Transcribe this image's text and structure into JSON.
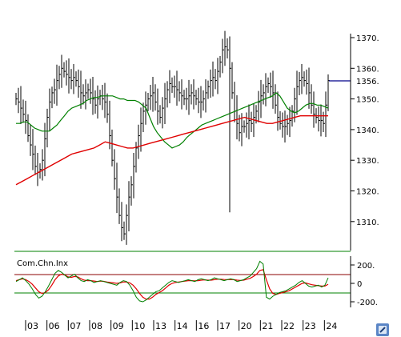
{
  "chart_data": [
    {
      "type": "line",
      "panel": "price",
      "description_series": [
        "Price bars (OHLC)",
        "Moving average (green)",
        "Moving average (red)"
      ],
      "y_ticks": [
        1310,
        1320,
        1330,
        1340,
        1350,
        1360,
        1370
      ],
      "y_tick_labels": [
        "1310.",
        "1320.",
        "1330.",
        "1340.",
        "1350.",
        "1360.",
        "1370."
      ],
      "last_price_label": "1356.",
      "last_price": 1356,
      "ylim": [
        1300,
        1375
      ],
      "grid": false,
      "colors": {
        "price": "#000000",
        "ma_short": "#008000",
        "ma_long": "#e00000",
        "last_price_line": "#00008b",
        "axis": "#000000",
        "separator": "#008000"
      },
      "x": [
        0,
        1,
        2,
        3,
        4,
        5,
        6,
        7,
        8,
        9,
        10,
        11,
        12,
        13,
        14,
        15,
        16,
        17,
        18,
        19,
        20,
        21,
        22,
        23,
        24,
        25,
        26,
        27,
        28,
        29,
        30,
        31,
        32,
        33,
        34,
        35,
        36,
        37,
        38,
        39,
        40,
        41,
        42,
        43,
        44,
        45,
        46,
        47,
        48,
        49,
        50,
        51,
        52,
        53,
        54,
        55,
        56,
        57,
        58,
        59,
        60,
        61,
        62,
        63,
        64,
        65,
        66,
        67,
        68,
        69,
        70,
        71,
        72,
        73,
        74,
        75,
        76,
        77,
        78,
        79,
        80,
        81,
        82,
        83,
        84,
        85,
        86,
        87,
        88,
        89,
        90,
        91,
        92,
        93,
        94,
        95,
        96,
        97,
        98,
        99,
        100,
        101,
        102,
        103,
        104,
        105,
        106,
        107,
        108,
        109,
        110,
        111,
        112,
        113,
        114,
        115,
        116,
        117,
        118,
        119,
        120,
        121,
        122,
        123,
        124,
        125,
        126,
        127,
        128,
        129,
        130
      ],
      "close": [
        1350,
        1349,
        1347,
        1345,
        1343,
        1338,
        1335,
        1332,
        1328,
        1326,
        1327,
        1330,
        1337,
        1344,
        1349,
        1352,
        1353,
        1356,
        1358,
        1360,
        1359,
        1358,
        1357,
        1356,
        1357,
        1356,
        1354,
        1352,
        1351,
        1352,
        1353,
        1352,
        1350,
        1348,
        1350,
        1351,
        1350,
        1349,
        1345,
        1338,
        1330,
        1324,
        1318,
        1312,
        1308,
        1306,
        1312,
        1318,
        1322,
        1328,
        1334,
        1338,
        1342,
        1346,
        1348,
        1350,
        1351,
        1352,
        1349,
        1346,
        1344,
        1347,
        1350,
        1353,
        1355,
        1354,
        1354,
        1353,
        1352,
        1351,
        1350,
        1350,
        1351,
        1352,
        1351,
        1350,
        1349,
        1349,
        1350,
        1352,
        1354,
        1356,
        1357,
        1356,
        1359,
        1362,
        1366,
        1367,
        1366,
        1360,
        1352,
        1346,
        1342,
        1339,
        1341,
        1341,
        1342,
        1343,
        1342,
        1344,
        1346,
        1349,
        1351,
        1352,
        1354,
        1355,
        1354,
        1352,
        1348,
        1344,
        1342,
        1341,
        1341,
        1342,
        1343,
        1346,
        1350,
        1354,
        1356,
        1357,
        1356,
        1355,
        1352,
        1348,
        1345,
        1344,
        1343,
        1343,
        1342,
        1348,
        1356
      ],
      "ma_short": [
        1342,
        1342,
        1342.5,
        1342.5,
        1341.5,
        1340.5,
        1340,
        1339.5,
        1339.5,
        1339.5,
        1340.5,
        1341.5,
        1343,
        1344.5,
        1346,
        1347,
        1347.5,
        1348,
        1348.5,
        1349.5,
        1350,
        1350.5,
        1350.5,
        1351,
        1351,
        1351,
        1351,
        1350.5,
        1350,
        1350,
        1349.5,
        1349.5,
        1349.5,
        1349,
        1348,
        1347,
        1344,
        1341,
        1339,
        1337.5,
        1336,
        1335,
        1334,
        1334.5,
        1335,
        1336,
        1337.5,
        1338.5,
        1339.5,
        1340.5,
        1341.5,
        1342,
        1342.5,
        1343,
        1343.5,
        1344,
        1344.5,
        1345,
        1345.5,
        1346,
        1346.5,
        1347,
        1347.5,
        1348,
        1348.5,
        1349,
        1349.5,
        1350,
        1350.5,
        1351,
        1352,
        1351,
        1349,
        1347,
        1346,
        1345.5,
        1346,
        1347,
        1348,
        1348.5,
        1348.5,
        1348,
        1348,
        1347.5,
        1347
      ],
      "ma_long": [
        1322,
        1323,
        1324,
        1325,
        1326,
        1327,
        1328,
        1329,
        1330,
        1331,
        1332,
        1332.5,
        1333,
        1333.5,
        1334,
        1335,
        1336,
        1335.5,
        1335,
        1334.5,
        1334,
        1334,
        1334.5,
        1335,
        1335.5,
        1336,
        1336.5,
        1337,
        1337.5,
        1338,
        1338.5,
        1339,
        1339.5,
        1340,
        1340.5,
        1341,
        1341.5,
        1342,
        1342.5,
        1343,
        1343.5,
        1344,
        1343.5,
        1343,
        1342.5,
        1342,
        1342,
        1342.5,
        1343,
        1343.5,
        1344,
        1344.5,
        1344.5,
        1344.5,
        1344.5,
        1344.5,
        1344.5
      ],
      "xlabel": "",
      "ylabel": ""
    },
    {
      "type": "line",
      "panel": "indicator",
      "title": "Com.Chn.Inx",
      "y_ticks": [
        200,
        0,
        -200
      ],
      "y_tick_labels": [
        "200.",
        "0",
        "-200."
      ],
      "overbought": 100,
      "oversold": -100,
      "colors": {
        "cci": "#008000",
        "signal": "#e00000",
        "overbought_line": "#8b0000",
        "oversold_line": "#008000"
      },
      "cci": [
        20,
        40,
        60,
        30,
        -10,
        -60,
        -120,
        -160,
        -140,
        -90,
        -30,
        40,
        110,
        140,
        120,
        90,
        60,
        80,
        100,
        60,
        30,
        20,
        40,
        30,
        10,
        20,
        30,
        20,
        10,
        0,
        -10,
        -20,
        10,
        30,
        20,
        -20,
        -80,
        -150,
        -190,
        -200,
        -180,
        -150,
        -120,
        -90,
        -80,
        -50,
        -20,
        10,
        30,
        20,
        10,
        20,
        30,
        40,
        30,
        20,
        40,
        50,
        40,
        30,
        40,
        60,
        50,
        40,
        30,
        40,
        50,
        40,
        20,
        30,
        40,
        60,
        80,
        120,
        160,
        240,
        210,
        -150,
        -170,
        -140,
        -120,
        -100,
        -90,
        -80,
        -60,
        -40,
        -20,
        10,
        30,
        0,
        -30,
        -40,
        -30,
        -20,
        -40,
        -20,
        60
      ],
      "signal": [
        30,
        40,
        50,
        40,
        20,
        -10,
        -50,
        -90,
        -110,
        -100,
        -70,
        -20,
        40,
        80,
        100,
        90,
        70,
        65,
        75,
        70,
        50,
        35,
        30,
        30,
        25,
        20,
        25,
        22,
        15,
        10,
        5,
        0,
        5,
        15,
        15,
        5,
        -20,
        -60,
        -110,
        -150,
        -170,
        -170,
        -150,
        -120,
        -100,
        -80,
        -50,
        -20,
        0,
        10,
        15,
        20,
        25,
        30,
        30,
        28,
        30,
        35,
        38,
        35,
        35,
        40,
        45,
        45,
        42,
        40,
        42,
        40,
        35,
        32,
        35,
        45,
        55,
        75,
        100,
        140,
        150,
        40,
        -60,
        -110,
        -120,
        -110,
        -100,
        -90,
        -80,
        -60,
        -40,
        -20,
        0,
        5,
        -5,
        -15,
        -20,
        -25,
        -30,
        -30,
        -10
      ]
    }
  ],
  "x_axis": {
    "labels": [
      "03",
      "06",
      "07",
      "08",
      "09",
      "10",
      "13",
      "14",
      "16",
      "17",
      "20",
      "21",
      "22",
      "23",
      "24"
    ]
  }
}
